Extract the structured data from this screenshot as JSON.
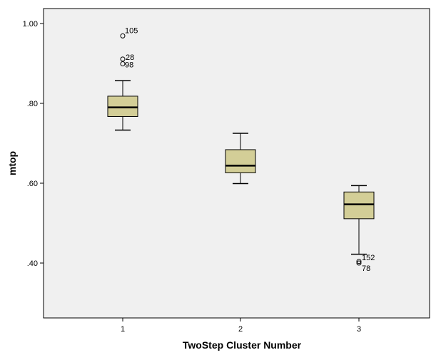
{
  "chart_data": {
    "type": "box",
    "title": "",
    "xlabel": "TwoStep Cluster Number",
    "ylabel": "mtop",
    "ylim": [
      0.25,
      1.03
    ],
    "yticks": [
      {
        "value": 1.0,
        "label": "1.00"
      },
      {
        "value": 0.8,
        "label": ".80"
      },
      {
        "value": 0.6,
        "label": ".60"
      },
      {
        "value": 0.4,
        "label": ".40"
      }
    ],
    "categories": [
      "1",
      "2",
      "3"
    ],
    "grid": false,
    "colors": {
      "plot_background": "#f0f0f0",
      "box_fill": "#d3ce97",
      "stroke": "#000000"
    },
    "boxes": [
      {
        "category": "1",
        "whisker_low": 0.733,
        "q1": 0.767,
        "median": 0.79,
        "q3": 0.818,
        "whisker_high": 0.857,
        "outliers": [
          {
            "value": 0.969,
            "label": "105"
          },
          {
            "value": 0.911,
            "label": "28"
          },
          {
            "value": 0.899,
            "label": "98"
          }
        ]
      },
      {
        "category": "2",
        "whisker_low": 0.599,
        "q1": 0.626,
        "median": 0.644,
        "q3": 0.684,
        "whisker_high": 0.725,
        "outliers": []
      },
      {
        "category": "3",
        "whisker_low": 0.422,
        "q1": 0.511,
        "median": 0.547,
        "q3": 0.578,
        "whisker_high": 0.594,
        "outliers": [
          {
            "value": 0.404,
            "label": "152"
          },
          {
            "value": 0.4,
            "label": "78"
          }
        ]
      }
    ]
  }
}
